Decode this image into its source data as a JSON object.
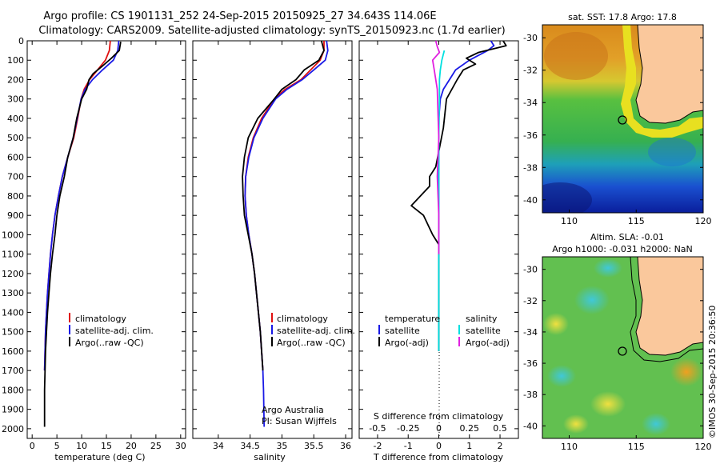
{
  "title": {
    "line1": "Argo profile: CS 1901131_252 24-Sep-2015 20150925_27 34.643S 114.06E",
    "line2": "Climatology: CARS2009. Satellite-adjusted climatology: synTS_20150923.nc (1.7d earlier)"
  },
  "colors": {
    "climatology": "#e01010",
    "satellite": "#1a1ae6",
    "argo": "#000000",
    "salinity_sat": "#00e0e0",
    "salinity_argo": "#e020e0"
  },
  "depth_axis": {
    "ticks": [
      "0",
      "100",
      "200",
      "300",
      "400",
      "500",
      "600",
      "700",
      "800",
      "900",
      "1000",
      "1100",
      "1200",
      "1300",
      "1400",
      "1500",
      "1600",
      "1700",
      "1800",
      "1900",
      "2000"
    ]
  },
  "legend_profile": {
    "climatology": "climatology",
    "satellite": "satellite-adj. clim.",
    "argo": "Argo(..raw -QC)"
  },
  "legend_diff": {
    "temp_header": "temperature",
    "sal_header": "salinity",
    "satellite": "satellite",
    "argo": "Argo(-adj)"
  },
  "credit": {
    "line1": "Argo Australia",
    "line2": "PI: Susan Wijffels"
  },
  "map_sst": {
    "title": "sat. SST: 17.8 Argo: 17.8"
  },
  "map_sla": {
    "title1": "Altim. SLA: -0.01",
    "title2": "Argo h1000: -0.031 h2000: NaN"
  },
  "watermark": "©IMOS 30-Sep-2015 20:36:50",
  "chart_data": [
    {
      "type": "line",
      "title": "",
      "xlabel": "temperature (deg C)",
      "ylabel": "",
      "xlim": [
        -1,
        31
      ],
      "ylim": [
        2050,
        0
      ],
      "xticks": [
        "0",
        "5",
        "10",
        "15",
        "20",
        "25",
        "30"
      ],
      "series": [
        {
          "name": "climatology",
          "color": "#e01010",
          "x": [
            15.8,
            15.6,
            14.8,
            13.2,
            11.6,
            10.5,
            9.9,
            9.2,
            8.4,
            7.2,
            6.1,
            5.3,
            4.6,
            4.1,
            3.7,
            3.4,
            3.1,
            2.9,
            2.7,
            2.6,
            2.5
          ],
          "y": [
            0,
            50,
            100,
            150,
            200,
            250,
            300,
            400,
            500,
            600,
            700,
            800,
            900,
            1000,
            1100,
            1200,
            1300,
            1400,
            1500,
            1600,
            1700
          ]
        },
        {
          "name": "satellite-adj. clim.",
          "color": "#1a1ae6",
          "x": [
            17.5,
            17.3,
            16.4,
            14.2,
            12.2,
            10.7,
            9.9,
            9.1,
            8.3,
            7.2,
            6.1,
            5.3,
            4.6,
            4.1,
            3.7,
            3.4,
            3.1,
            2.9,
            2.7,
            2.6,
            2.5
          ],
          "y": [
            0,
            50,
            100,
            150,
            200,
            250,
            300,
            400,
            500,
            600,
            700,
            800,
            900,
            1000,
            1100,
            1200,
            1300,
            1400,
            1500,
            1600,
            1700
          ]
        },
        {
          "name": "Argo(..raw -QC)",
          "color": "#000000",
          "x": [
            17.9,
            17.8,
            17.6,
            16.0,
            14.2,
            12.3,
            11.5,
            11.0,
            10.0,
            9.0,
            8.3,
            7.2,
            6.5,
            5.6,
            5.0,
            4.6,
            4.1,
            3.7,
            3.4,
            3.1,
            2.9,
            2.7,
            2.6,
            2.5,
            2.5
          ],
          "y": [
            5,
            20,
            50,
            90,
            130,
            170,
            200,
            250,
            300,
            400,
            500,
            600,
            700,
            800,
            900,
            1000,
            1100,
            1200,
            1300,
            1400,
            1500,
            1600,
            1700,
            1800,
            1990
          ]
        }
      ]
    },
    {
      "type": "line",
      "title": "",
      "xlabel": "salinity",
      "ylabel": "",
      "xlim": [
        33.6,
        36.1
      ],
      "ylim": [
        2050,
        0
      ],
      "xticks": [
        "34",
        "34.5",
        "35",
        "35.5",
        "36"
      ],
      "series": [
        {
          "name": "climatology",
          "color": "#e01010",
          "x": [
            35.66,
            35.66,
            35.6,
            35.45,
            35.3,
            35.05,
            34.88,
            34.68,
            34.55,
            34.47,
            34.43,
            34.42,
            34.44,
            34.48,
            34.53,
            34.57,
            34.6,
            34.63,
            34.66,
            34.68,
            34.7
          ],
          "y": [
            0,
            50,
            100,
            150,
            200,
            250,
            300,
            400,
            500,
            600,
            700,
            800,
            900,
            1000,
            1100,
            1200,
            1300,
            1400,
            1500,
            1600,
            1700
          ]
        },
        {
          "name": "satellite-adj. clim.",
          "color": "#1a1ae6",
          "x": [
            35.7,
            35.72,
            35.68,
            35.5,
            35.32,
            35.08,
            34.9,
            34.7,
            34.56,
            34.48,
            34.43,
            34.42,
            34.44,
            34.48,
            34.53,
            34.57,
            34.6,
            34.63,
            34.66,
            34.68,
            34.7,
            34.71,
            34.72
          ],
          "y": [
            0,
            50,
            100,
            150,
            200,
            250,
            300,
            400,
            500,
            600,
            700,
            800,
            900,
            1000,
            1100,
            1200,
            1300,
            1400,
            1500,
            1600,
            1700,
            1800,
            1990
          ]
        },
        {
          "name": "Argo(..raw -QC)",
          "color": "#000000",
          "x": [
            35.62,
            35.66,
            35.58,
            35.35,
            35.22,
            35.0,
            34.88,
            34.62,
            34.47,
            34.41,
            34.38,
            34.39,
            34.41,
            34.47,
            34.53,
            34.57,
            34.6,
            34.63,
            34.66,
            34.68,
            34.7
          ],
          "y": [
            0,
            50,
            100,
            150,
            200,
            250,
            300,
            400,
            500,
            600,
            700,
            800,
            900,
            1000,
            1100,
            1200,
            1300,
            1400,
            1500,
            1600,
            1700
          ]
        }
      ]
    },
    {
      "type": "line",
      "title": "",
      "xlabel": "T difference from climatology",
      "x2label": "S difference from climatology",
      "ylabel": "",
      "xlim": [
        -2.6,
        2.6
      ],
      "ylim": [
        2050,
        0
      ],
      "xticks": [
        "-2",
        "-1",
        "0",
        "1",
        "2"
      ],
      "x2ticks": [
        "-0.5",
        "-0.25",
        "0",
        "0.25",
        "0.5"
      ],
      "series": [
        {
          "name": "temperature satellite",
          "color": "#1a1ae6",
          "x": [
            1.7,
            1.8,
            1.6,
            1.0,
            0.55,
            0.35,
            0.15,
            0.05,
            0.0,
            0.0,
            0.0,
            0.0,
            0.0,
            0.0,
            0.0,
            0.0,
            0.0,
            0.0,
            0.0
          ],
          "y": [
            0,
            25,
            50,
            100,
            150,
            200,
            250,
            300,
            400,
            500,
            600,
            700,
            800,
            900,
            1000,
            1100,
            1200,
            1300,
            1600
          ]
        },
        {
          "name": "temperature Argo(-adj)",
          "color": "#000000",
          "x": [
            2.1,
            2.2,
            1.3,
            0.9,
            1.2,
            0.8,
            0.6,
            0.25,
            0.15,
            -0.1,
            -0.3,
            -0.3,
            -0.6,
            -0.9,
            -0.5,
            -0.2,
            0.0,
            0.0,
            0.0,
            0.0
          ],
          "y": [
            0,
            25,
            60,
            90,
            120,
            150,
            200,
            300,
            450,
            650,
            700,
            750,
            800,
            850,
            900,
            1000,
            1050,
            1100,
            1200,
            1600
          ]
        },
        {
          "name": "salinity satellite",
          "color": "#00e0e0",
          "x": [
            0.18,
            0.1,
            0.05,
            0.02,
            0.02,
            0.01,
            0.0,
            0.0,
            0.0,
            0.0
          ],
          "y": [
            50,
            100,
            150,
            200,
            300,
            400,
            500,
            700,
            1000,
            1600
          ]
        },
        {
          "name": "salinity Argo(-adj)",
          "color": "#e020e0",
          "x": [
            -0.1,
            -0.05,
            0.02,
            -0.2,
            -0.15,
            -0.05,
            -0.02,
            0.0,
            -0.05,
            0.0,
            0.0
          ],
          "y": [
            0,
            30,
            60,
            100,
            150,
            250,
            400,
            500,
            700,
            900,
            1100
          ]
        }
      ]
    },
    {
      "type": "heatmap",
      "title": "sat. SST: 17.8 Argo: 17.8",
      "xlabel": "",
      "ylabel": "",
      "xlim": [
        108,
        120
      ],
      "ylim": [
        -40.8,
        -29.2
      ],
      "xticks": [
        "110",
        "115",
        "120"
      ],
      "yticks": [
        "-30",
        "-32",
        "-34",
        "-36",
        "-38",
        "-40"
      ],
      "argo_position": {
        "lon": 114.06,
        "lat": -34.643
      }
    },
    {
      "type": "heatmap",
      "title": "Altim. SLA: -0.01",
      "xlabel": "",
      "ylabel": "",
      "xlim": [
        108,
        120
      ],
      "ylim": [
        -40.8,
        -29.2
      ],
      "xticks": [
        "110",
        "115",
        "120"
      ],
      "yticks": [
        "-30",
        "-32",
        "-34",
        "-36",
        "-38",
        "-40"
      ],
      "argo_position": {
        "lon": 114.06,
        "lat": -34.643
      }
    }
  ]
}
